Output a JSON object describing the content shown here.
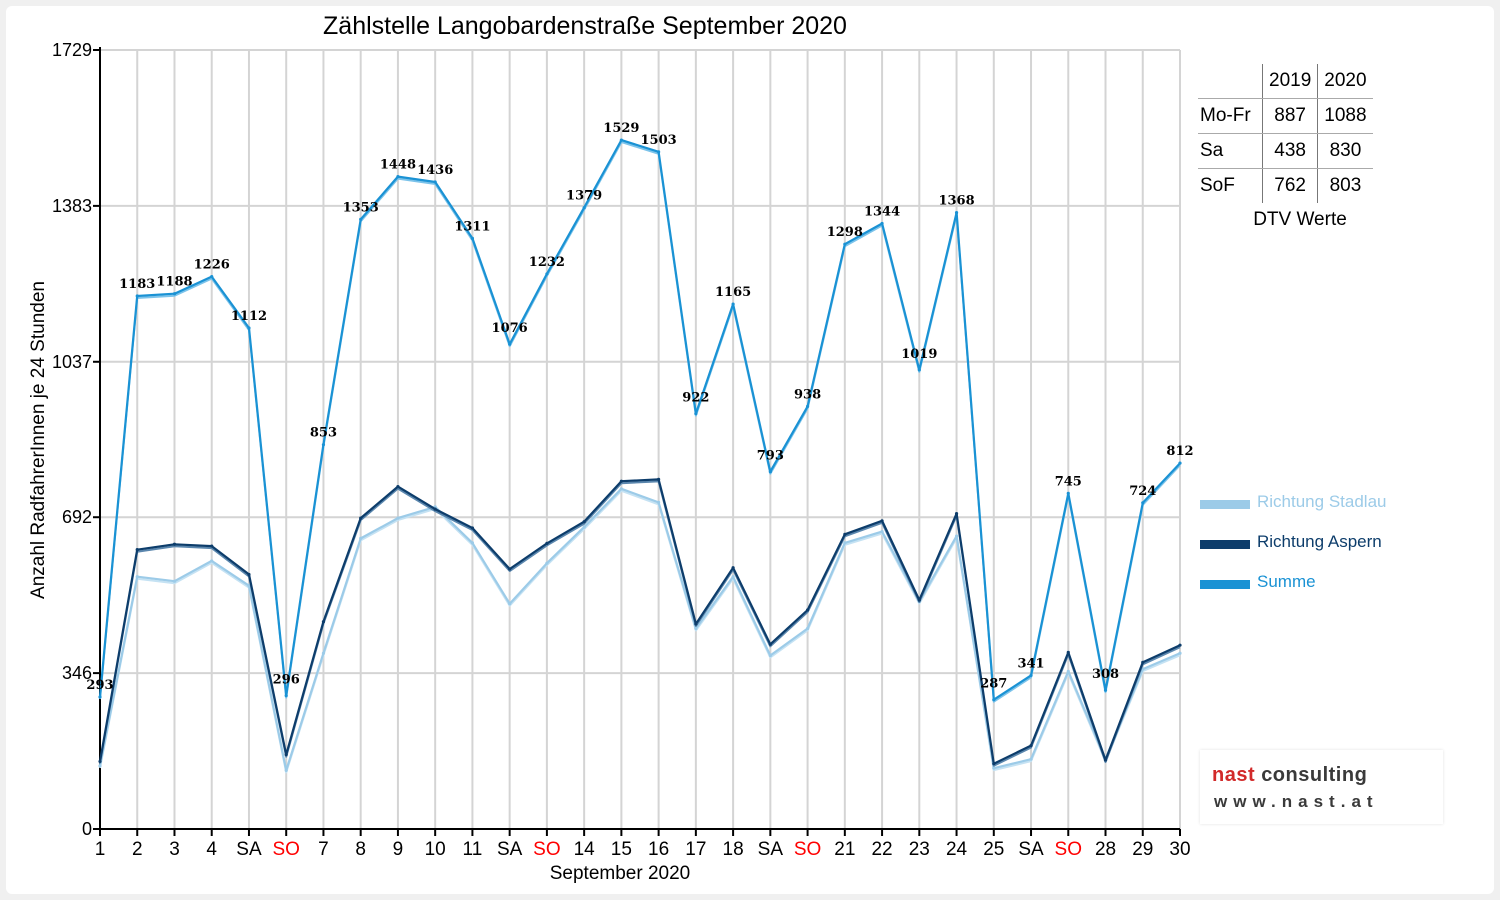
{
  "chart_data": {
    "type": "line",
    "title": "Zählstelle Langobardenstraße September 2020",
    "xlabel": "September 2020",
    "ylabel": "Anzahl RadfahrerInnen je 24 Stunden",
    "ylim": [
      0,
      1729
    ],
    "yticks": [
      "0",
      "346",
      "692",
      "1037",
      "1383",
      "1729"
    ],
    "categories": [
      "1",
      "2",
      "3",
      "4",
      "SA",
      "SO",
      "7",
      "8",
      "9",
      "10",
      "11",
      "SA",
      "SO",
      "14",
      "15",
      "16",
      "17",
      "18",
      "SA",
      "SO",
      "21",
      "22",
      "23",
      "24",
      "25",
      "SA",
      "SO",
      "28",
      "29",
      "30"
    ],
    "weekend_color": "#ff0000",
    "weekend_label": "SO",
    "grid": true,
    "legend": "right",
    "series": [
      {
        "name": "Richtung Stadlau",
        "color": "#9ccbe8",
        "values": [
          140,
          560,
          550,
          595,
          540,
          130,
          390,
          645,
          690,
          715,
          635,
          500,
          590,
          670,
          755,
          725,
          445,
          560,
          385,
          445,
          635,
          660,
          505,
          650,
          135,
          155,
          350,
          155,
          355,
          390
        ]
      },
      {
        "name": "Richtung Aspern",
        "color": "#0d3d6b",
        "values": [
          150,
          620,
          632,
          628,
          565,
          165,
          460,
          690,
          760,
          710,
          668,
          577,
          634,
          682,
          772,
          776,
          455,
          580,
          410,
          486,
          654,
          684,
          508,
          700,
          145,
          185,
          392,
          153,
          370,
          408
        ]
      },
      {
        "name": "Summe",
        "color": "#1a92d4",
        "values": [
          293,
          1183,
          1188,
          1226,
          1112,
          296,
          853,
          1353,
          1448,
          1436,
          1311,
          1076,
          1232,
          1379,
          1529,
          1503,
          922,
          1165,
          793,
          938,
          1298,
          1344,
          1019,
          1368,
          287,
          341,
          745,
          308,
          724,
          812
        ]
      }
    ],
    "data_labels": [
      "293",
      "1183",
      "1188",
      "1226",
      "1112",
      "296",
      "853",
      "1353",
      "1448",
      "1436",
      "1311",
      "1076",
      "1232",
      "1379",
      "1529",
      "1503",
      "922",
      "1165",
      "793",
      "938",
      "1298",
      "1344",
      "1019",
      "1368",
      "287",
      "341",
      "745",
      "308",
      "724",
      "812"
    ]
  },
  "dtv_table": {
    "caption": "DTV Werte",
    "headers": [
      "",
      "2019",
      "2020"
    ],
    "rows": [
      {
        "label": "Mo-Fr",
        "v2019": "887",
        "v2020": "1088"
      },
      {
        "label": "Sa",
        "v2019": "438",
        "v2020": "830"
      },
      {
        "label": "SoF",
        "v2019": "762",
        "v2020": "803"
      }
    ]
  },
  "logo": {
    "brand_red": "nast",
    "brand_dark": "consulting",
    "url": "www.nast.at"
  }
}
